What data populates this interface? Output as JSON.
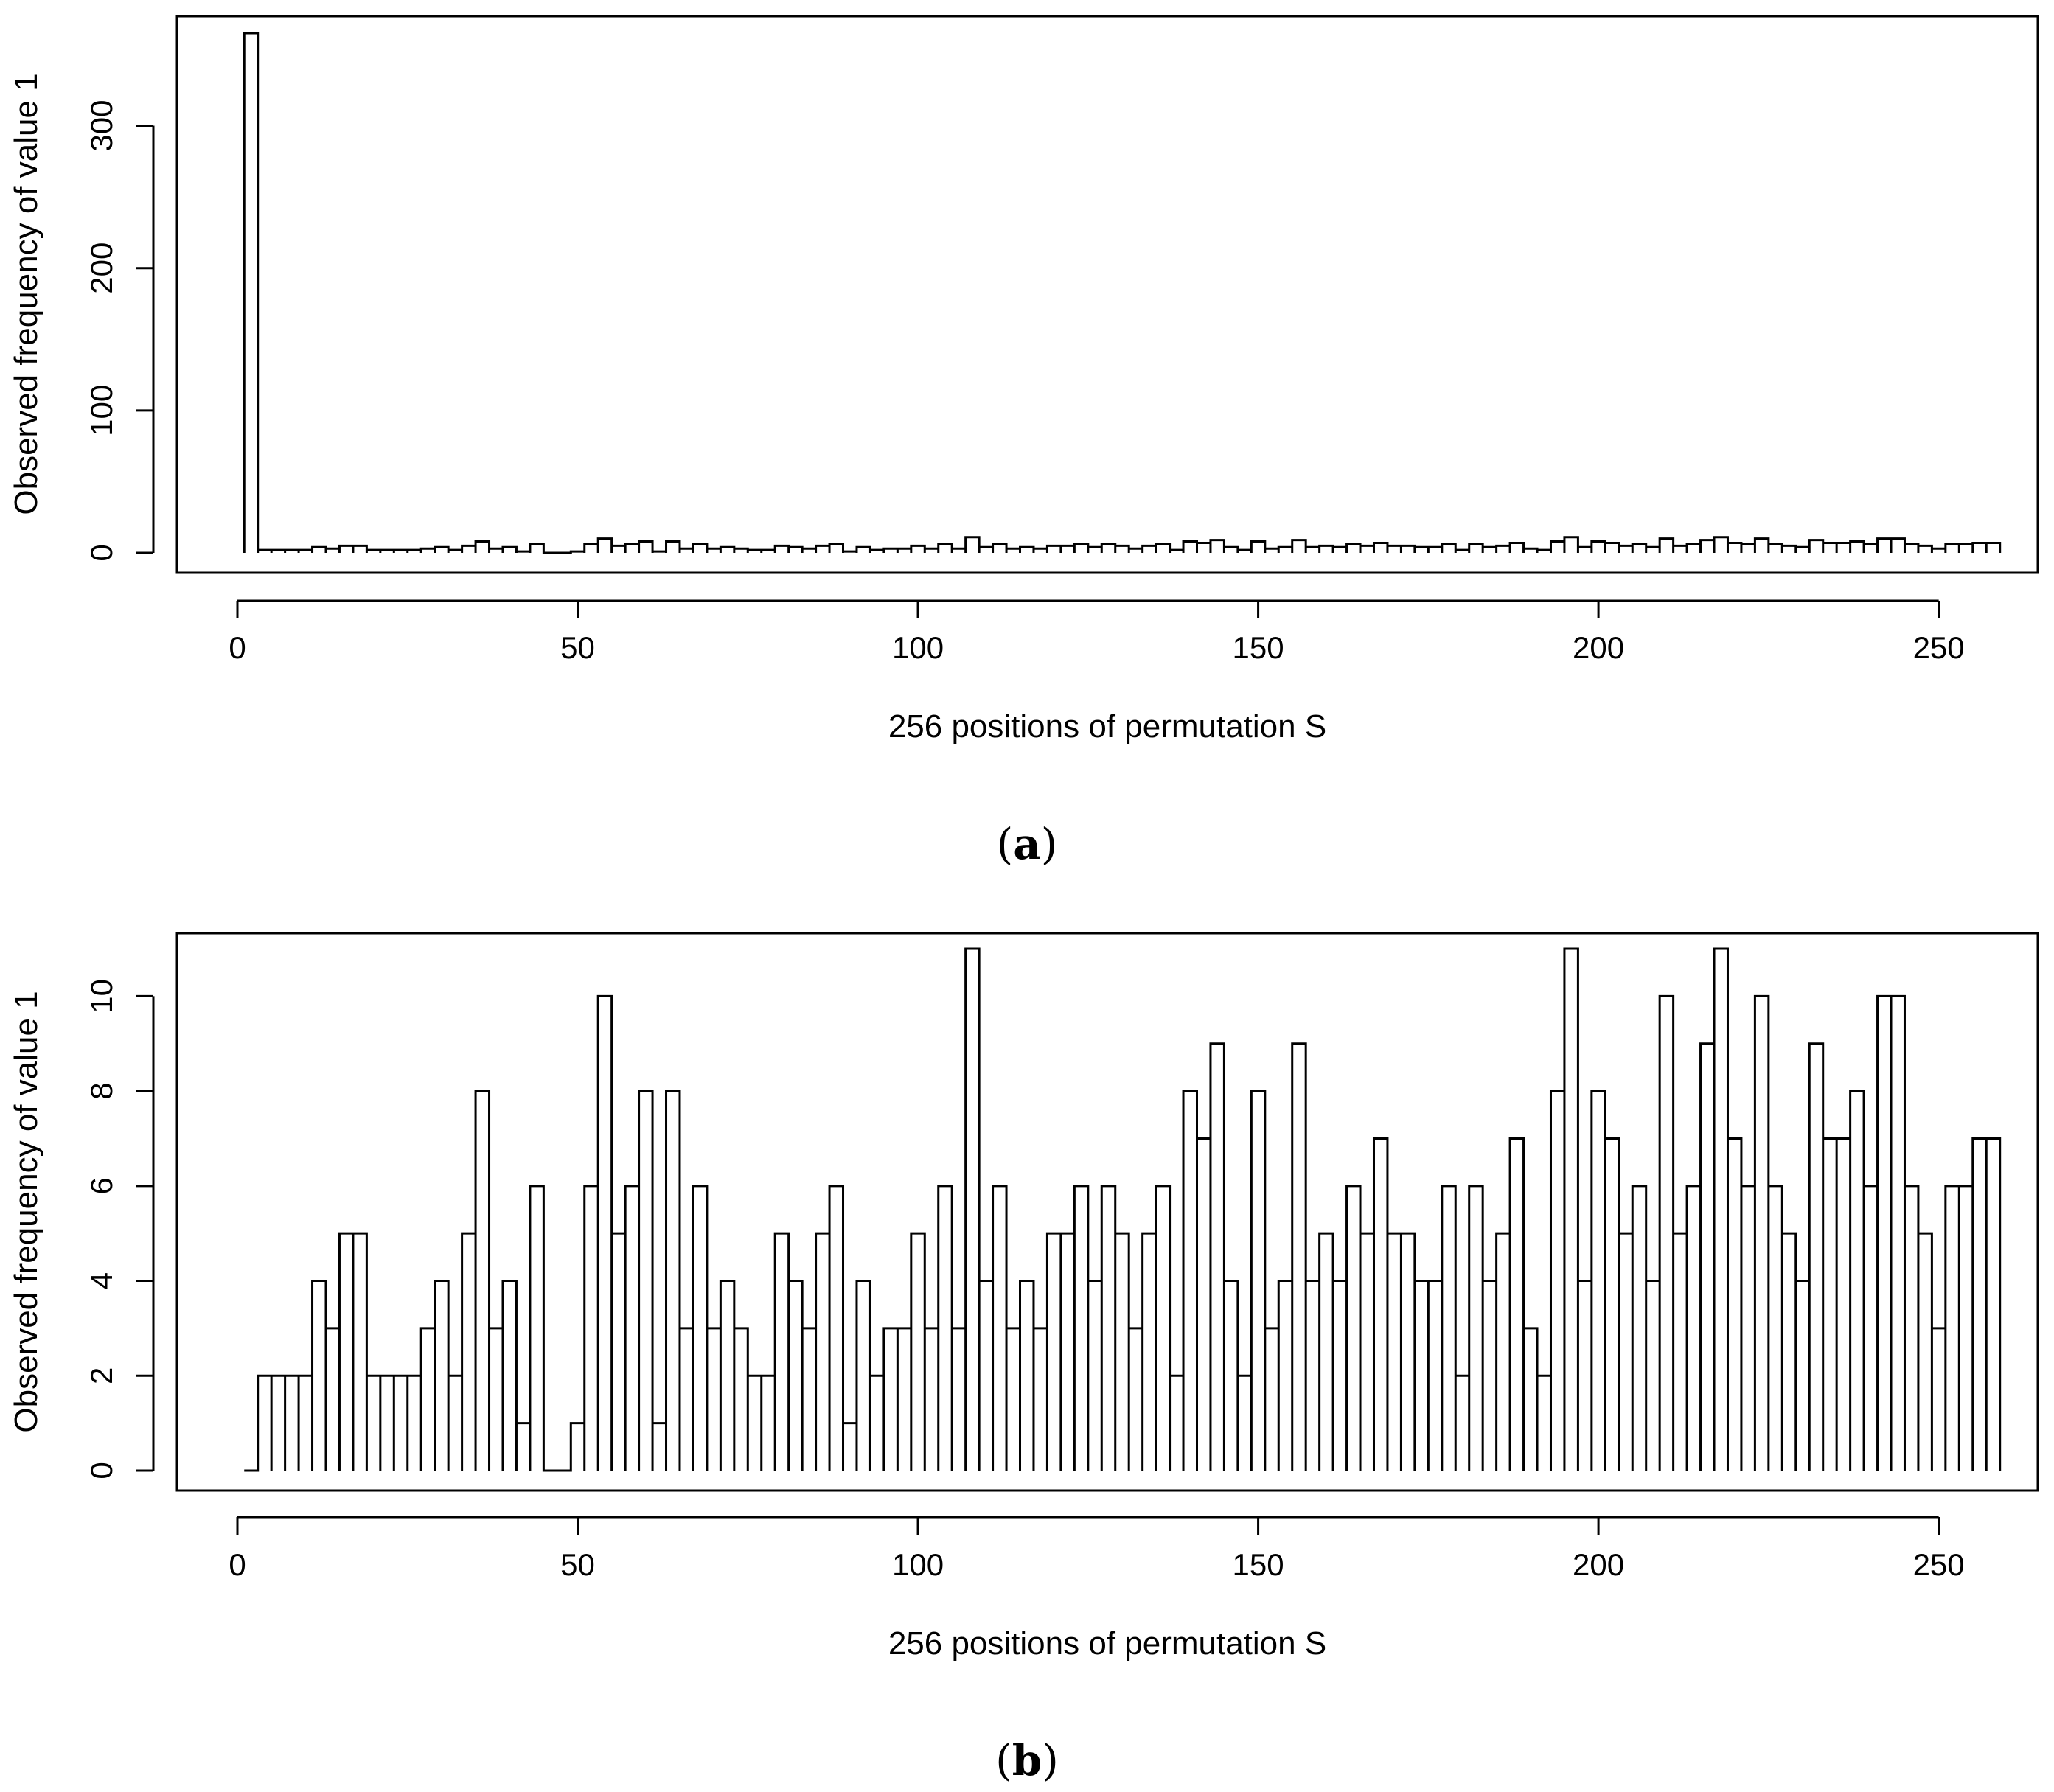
{
  "chart_data": [
    {
      "type": "bar",
      "panel_label": {
        "open": "(",
        "letter": "a",
        "close": ")"
      },
      "xlabel": "256 positions of permutation S",
      "ylabel": "Observed frequency of value 1",
      "xlim": [
        0,
        256
      ],
      "ylim": [
        0,
        365
      ],
      "x_ticks": [
        0,
        50,
        100,
        150,
        200,
        250
      ],
      "y_ticks": [
        0,
        100,
        200,
        300
      ],
      "x_start": 1,
      "values": [
        365,
        2,
        2,
        2,
        2,
        4,
        3,
        5,
        5,
        2,
        2,
        2,
        2,
        3,
        4,
        2,
        5,
        8,
        3,
        4,
        1,
        6,
        0,
        0,
        1,
        6,
        10,
        5,
        6,
        8,
        1,
        8,
        3,
        6,
        3,
        4,
        3,
        2,
        2,
        5,
        4,
        3,
        5,
        6,
        1,
        4,
        2,
        3,
        3,
        5,
        3,
        6,
        3,
        11,
        4,
        6,
        3,
        4,
        3,
        5,
        5,
        6,
        4,
        6,
        5,
        3,
        5,
        6,
        2,
        8,
        7,
        9,
        4,
        2,
        8,
        3,
        4,
        9,
        4,
        5,
        4,
        6,
        5,
        7,
        5,
        5,
        4,
        4,
        6,
        2,
        6,
        4,
        5,
        7,
        3,
        2,
        8,
        11,
        4,
        8,
        7,
        5,
        6,
        4,
        10,
        5,
        6,
        9,
        11,
        7,
        6,
        10,
        6,
        5,
        4,
        9,
        7,
        7,
        8,
        6,
        10,
        10,
        6,
        5,
        3,
        6,
        6,
        7,
        7
      ]
    },
    {
      "type": "bar",
      "panel_label": {
        "open": "(",
        "letter": "b",
        "close": ")"
      },
      "xlabel": "256 positions of permutation S",
      "ylabel": "Observed frequency of value 1",
      "xlim": [
        0,
        256
      ],
      "ylim": [
        0,
        11
      ],
      "x_ticks": [
        0,
        50,
        100,
        150,
        200,
        250
      ],
      "y_ticks": [
        0,
        2,
        4,
        6,
        8,
        10
      ],
      "x_start": 1,
      "values": [
        0,
        2,
        2,
        2,
        2,
        4,
        3,
        5,
        5,
        2,
        2,
        2,
        2,
        3,
        4,
        2,
        5,
        8,
        3,
        4,
        1,
        6,
        0,
        0,
        1,
        6,
        10,
        5,
        6,
        8,
        1,
        8,
        3,
        6,
        3,
        4,
        3,
        2,
        2,
        5,
        4,
        3,
        5,
        6,
        1,
        4,
        2,
        3,
        3,
        5,
        3,
        6,
        3,
        11,
        4,
        6,
        3,
        4,
        3,
        5,
        5,
        6,
        4,
        6,
        5,
        3,
        5,
        6,
        2,
        8,
        7,
        9,
        4,
        2,
        8,
        3,
        4,
        9,
        4,
        5,
        4,
        6,
        5,
        7,
        5,
        5,
        4,
        4,
        6,
        2,
        6,
        4,
        5,
        7,
        3,
        2,
        8,
        11,
        4,
        8,
        7,
        5,
        6,
        4,
        10,
        5,
        6,
        9,
        11,
        7,
        6,
        10,
        6,
        5,
        4,
        9,
        7,
        7,
        8,
        6,
        10,
        10,
        6,
        5,
        3,
        6,
        6,
        7,
        7
      ]
    }
  ]
}
